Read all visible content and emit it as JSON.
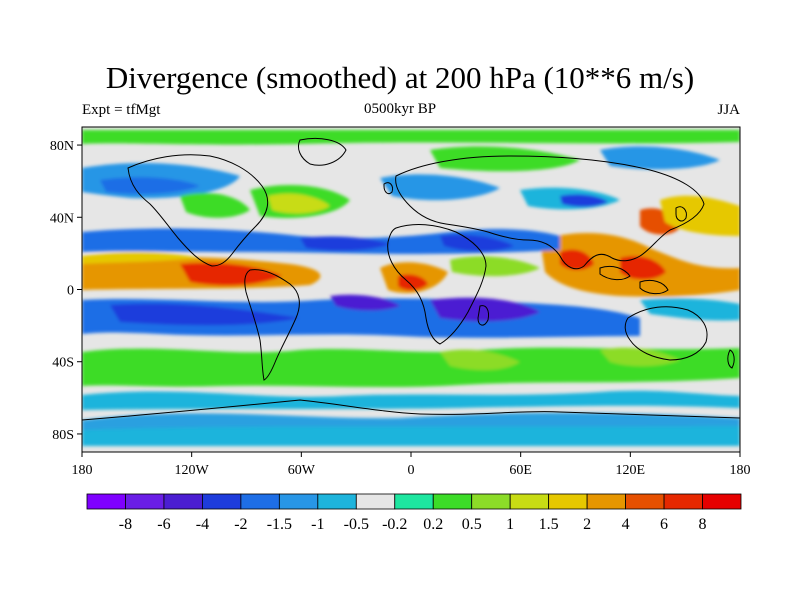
{
  "title": "Divergence (smoothed) at 200 hPa (10**6 m/s)",
  "subtitle_left": "Expt = tfMgt",
  "subtitle_center": "0500kyr BP",
  "subtitle_right": "JJA",
  "map": {
    "projection": "cylindrical equidistant",
    "lon_range": [
      -180,
      180
    ],
    "lat_range": [
      -90,
      90
    ],
    "x_ticks": [
      "180",
      "120W",
      "60W",
      "0",
      "60E",
      "120E",
      "180"
    ],
    "y_ticks": [
      "80N",
      "40N",
      "0",
      "40S",
      "80S"
    ]
  },
  "colorbar": {
    "colors": [
      "#7f00ff",
      "#6a1ee6",
      "#4b1ed2",
      "#1e3cdc",
      "#1e6ee6",
      "#2896e6",
      "#1eb4dc",
      "#e6e6e6",
      "#1ee6a0",
      "#3cdc28",
      "#8cdc28",
      "#c8dc14",
      "#e6c800",
      "#e69600",
      "#e65000",
      "#e62800",
      "#e60000"
    ],
    "labels": [
      "-8",
      "-6",
      "-4",
      "-2",
      "-1.5",
      "-1",
      "-0.5",
      "-0.2",
      "0.2",
      "0.5",
      "1",
      "1.5",
      "2",
      "4",
      "6",
      "8"
    ]
  }
}
